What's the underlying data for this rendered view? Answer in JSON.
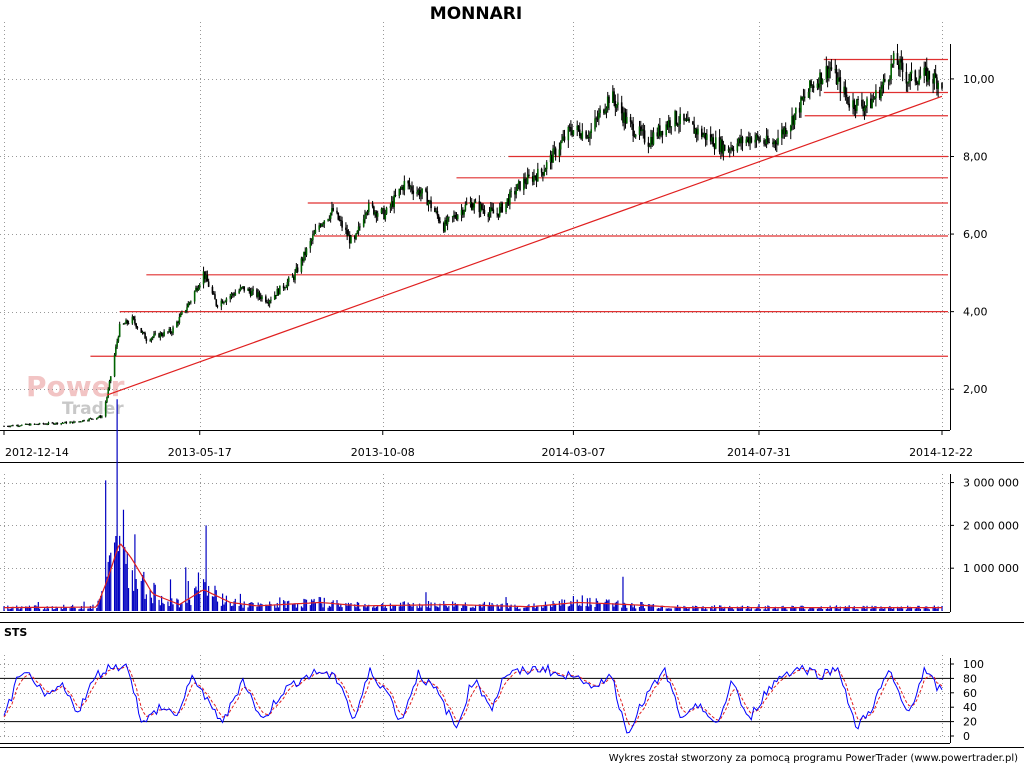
{
  "title": "MONNARI",
  "footer": "Wykres został stworzony za pomocą programu PowerTrader (www.powertrader.pl)",
  "watermark": {
    "line1": "Power",
    "line2": "Trader"
  },
  "colors": {
    "candle_up": "#006400",
    "candle_down": "#000000",
    "resistance": "#e03030",
    "trend": "#e02020",
    "volume": "#0000c0",
    "volume_avg": "#e02020",
    "stoch_k": "#0000ff",
    "stoch_d": "#e02020",
    "grid": "#999999"
  },
  "chart_data": [
    {
      "type": "candlestick",
      "title": "MONNARI",
      "ylim": [
        1.0,
        10.9
      ],
      "y_tick_labels": [
        "2,00",
        "4,00",
        "6,00",
        "8,00",
        "10,00"
      ],
      "y_ticks": [
        2,
        4,
        6,
        8,
        10
      ],
      "x_tick_labels": [
        "2012-12-14",
        "2013-05-17",
        "2013-10-08",
        "2014-03-07",
        "2014-07-31",
        "2014-12-22"
      ],
      "date_range": [
        "2012-12-14",
        "2014-12-22"
      ],
      "grid": true,
      "close_path": [
        [
          "2012-12-14",
          1.05
        ],
        [
          "2013-01-10",
          1.1
        ],
        [
          "2013-02-08",
          1.15
        ],
        [
          "2013-03-01",
          1.3
        ],
        [
          "2013-03-05",
          1.8
        ],
        [
          "2013-03-15",
          3.6
        ],
        [
          "2013-03-25",
          3.8
        ],
        [
          "2013-04-05",
          3.3
        ],
        [
          "2013-04-25",
          3.5
        ],
        [
          "2013-05-10",
          4.3
        ],
        [
          "2013-05-20",
          5.0
        ],
        [
          "2013-05-30",
          4.2
        ],
        [
          "2013-06-20",
          4.6
        ],
        [
          "2013-07-10",
          4.3
        ],
        [
          "2013-07-30",
          4.9
        ],
        [
          "2013-08-20",
          6.3
        ],
        [
          "2013-08-30",
          6.6
        ],
        [
          "2013-09-15",
          5.7
        ],
        [
          "2013-09-25",
          6.7
        ],
        [
          "2013-10-10",
          6.5
        ],
        [
          "2013-10-25",
          7.3
        ],
        [
          "2013-11-10",
          7.0
        ],
        [
          "2013-11-25",
          6.2
        ],
        [
          "2013-12-15",
          6.8
        ],
        [
          "2014-01-05",
          6.5
        ],
        [
          "2014-01-25",
          7.3
        ],
        [
          "2014-02-10",
          7.6
        ],
        [
          "2014-03-05",
          8.7
        ],
        [
          "2014-03-20",
          8.6
        ],
        [
          "2014-04-05",
          9.6
        ],
        [
          "2014-04-20",
          8.8
        ],
        [
          "2014-05-05",
          8.4
        ],
        [
          "2014-05-25",
          9.0
        ],
        [
          "2014-06-15",
          8.6
        ],
        [
          "2014-07-05",
          8.2
        ],
        [
          "2014-07-25",
          8.5
        ],
        [
          "2014-08-10",
          8.3
        ],
        [
          "2014-08-25",
          8.9
        ],
        [
          "2014-09-10",
          9.8
        ],
        [
          "2014-09-25",
          10.3
        ],
        [
          "2014-10-10",
          9.4
        ],
        [
          "2014-10-25",
          9.3
        ],
        [
          "2014-11-05",
          9.8
        ],
        [
          "2014-11-15",
          10.5
        ],
        [
          "2014-11-25",
          10.0
        ],
        [
          "2014-12-10",
          10.1
        ],
        [
          "2014-12-22",
          9.9
        ]
      ],
      "horizontal_levels": [
        {
          "value": 2.85,
          "from": "2013-02-20"
        },
        {
          "value": 4.0,
          "from": "2013-03-15"
        },
        {
          "value": 4.95,
          "from": "2013-04-05"
        },
        {
          "value": 5.95,
          "from": "2013-08-15"
        },
        {
          "value": 6.8,
          "from": "2013-08-10"
        },
        {
          "value": 7.45,
          "from": "2013-12-05"
        },
        {
          "value": 8.0,
          "from": "2014-01-15"
        },
        {
          "value": 9.05,
          "from": "2014-09-05"
        },
        {
          "value": 9.65,
          "from": "2014-09-20"
        },
        {
          "value": 10.5,
          "from": "2014-09-20"
        }
      ],
      "trendline": {
        "from": [
          "2013-03-05",
          1.85
        ],
        "to": [
          "2014-12-22",
          9.55
        ]
      }
    },
    {
      "type": "bar",
      "name": "volume",
      "ylim": [
        0,
        3200000
      ],
      "y_tick_labels": [
        "1 000 000",
        "2 000 000",
        "3 000 000"
      ],
      "y_ticks": [
        1000000,
        2000000,
        3000000
      ],
      "spikes": [
        [
          "2013-03-02",
          2300000
        ],
        [
          "2013-03-04",
          3050000
        ],
        [
          "2013-03-07",
          1300000
        ],
        [
          "2013-03-09",
          2600000
        ],
        [
          "2013-03-11",
          1600000
        ],
        [
          "2013-03-14",
          1400000
        ],
        [
          "2013-03-17",
          2000000
        ],
        [
          "2013-03-20",
          1100000
        ],
        [
          "2013-03-24",
          900000
        ],
        [
          "2013-04-01",
          700000
        ],
        [
          "2013-04-08",
          500000
        ],
        [
          "2013-05-08",
          700000
        ],
        [
          "2013-05-12",
          1000000
        ],
        [
          "2013-05-16",
          900000
        ],
        [
          "2013-05-22",
          800000
        ],
        [
          "2013-06-01",
          600000
        ],
        [
          "2013-06-18",
          400000
        ],
        [
          "2014-04-15",
          800000
        ],
        [
          "2014-03-07",
          350000
        ]
      ],
      "average_path": [
        [
          "2012-12-14",
          80000
        ],
        [
          "2013-02-25",
          90000
        ],
        [
          "2013-03-05",
          700000
        ],
        [
          "2013-03-15",
          1600000
        ],
        [
          "2013-03-25",
          1200000
        ],
        [
          "2013-04-10",
          400000
        ],
        [
          "2013-05-01",
          150000
        ],
        [
          "2013-05-20",
          500000
        ],
        [
          "2013-06-10",
          200000
        ],
        [
          "2013-07-01",
          120000
        ],
        [
          "2013-08-20",
          200000
        ],
        [
          "2013-09-20",
          120000
        ],
        [
          "2013-12-01",
          150000
        ],
        [
          "2014-02-01",
          100000
        ],
        [
          "2014-03-10",
          200000
        ],
        [
          "2014-04-20",
          150000
        ],
        [
          "2014-06-01",
          80000
        ],
        [
          "2014-12-22",
          80000
        ]
      ]
    },
    {
      "type": "line",
      "name": "STS",
      "ylim": [
        0,
        100
      ],
      "y_tick_labels": [
        "0",
        "20",
        "40",
        "60",
        "80",
        "100"
      ],
      "y_ticks": [
        0,
        20,
        40,
        60,
        80,
        100
      ],
      "reference_levels": [
        20,
        80
      ],
      "k_path": [
        [
          "2012-12-14",
          25
        ],
        [
          "2012-12-25",
          80
        ],
        [
          "2013-01-05",
          85
        ],
        [
          "2013-01-15",
          50
        ],
        [
          "2013-01-28",
          70
        ],
        [
          "2013-02-10",
          35
        ],
        [
          "2013-02-25",
          85
        ],
        [
          "2013-03-10",
          98
        ],
        [
          "2013-03-22",
          95
        ],
        [
          "2013-04-02",
          15
        ],
        [
          "2013-04-15",
          40
        ],
        [
          "2013-04-30",
          30
        ],
        [
          "2013-05-12",
          85
        ],
        [
          "2013-05-25",
          40
        ],
        [
          "2013-06-05",
          20
        ],
        [
          "2013-06-20",
          80
        ],
        [
          "2013-07-05",
          20
        ],
        [
          "2013-07-20",
          60
        ],
        [
          "2013-08-05",
          80
        ],
        [
          "2013-08-20",
          90
        ],
        [
          "2013-09-05",
          75
        ],
        [
          "2013-09-15",
          20
        ],
        [
          "2013-09-28",
          90
        ],
        [
          "2013-10-12",
          60
        ],
        [
          "2013-10-22",
          20
        ],
        [
          "2013-11-05",
          88
        ],
        [
          "2013-11-20",
          60
        ],
        [
          "2013-12-05",
          10
        ],
        [
          "2013-12-18",
          80
        ],
        [
          "2014-01-02",
          40
        ],
        [
          "2014-01-12",
          85
        ],
        [
          "2014-01-28",
          90
        ],
        [
          "2014-02-12",
          95
        ],
        [
          "2014-02-28",
          80
        ],
        [
          "2014-03-10",
          90
        ],
        [
          "2014-03-22",
          60
        ],
        [
          "2014-04-05",
          90
        ],
        [
          "2014-04-18",
          5
        ],
        [
          "2014-05-05",
          60
        ],
        [
          "2014-05-18",
          90
        ],
        [
          "2014-06-01",
          20
        ],
        [
          "2014-06-15",
          45
        ],
        [
          "2014-06-28",
          10
        ],
        [
          "2014-07-10",
          80
        ],
        [
          "2014-07-22",
          20
        ],
        [
          "2014-08-05",
          60
        ],
        [
          "2014-08-18",
          85
        ],
        [
          "2014-09-02",
          95
        ],
        [
          "2014-09-18",
          85
        ],
        [
          "2014-10-02",
          95
        ],
        [
          "2014-10-15",
          10
        ],
        [
          "2014-10-28",
          40
        ],
        [
          "2014-11-10",
          90
        ],
        [
          "2014-11-25",
          30
        ],
        [
          "2014-12-08",
          90
        ],
        [
          "2014-12-22",
          60
        ]
      ]
    }
  ]
}
